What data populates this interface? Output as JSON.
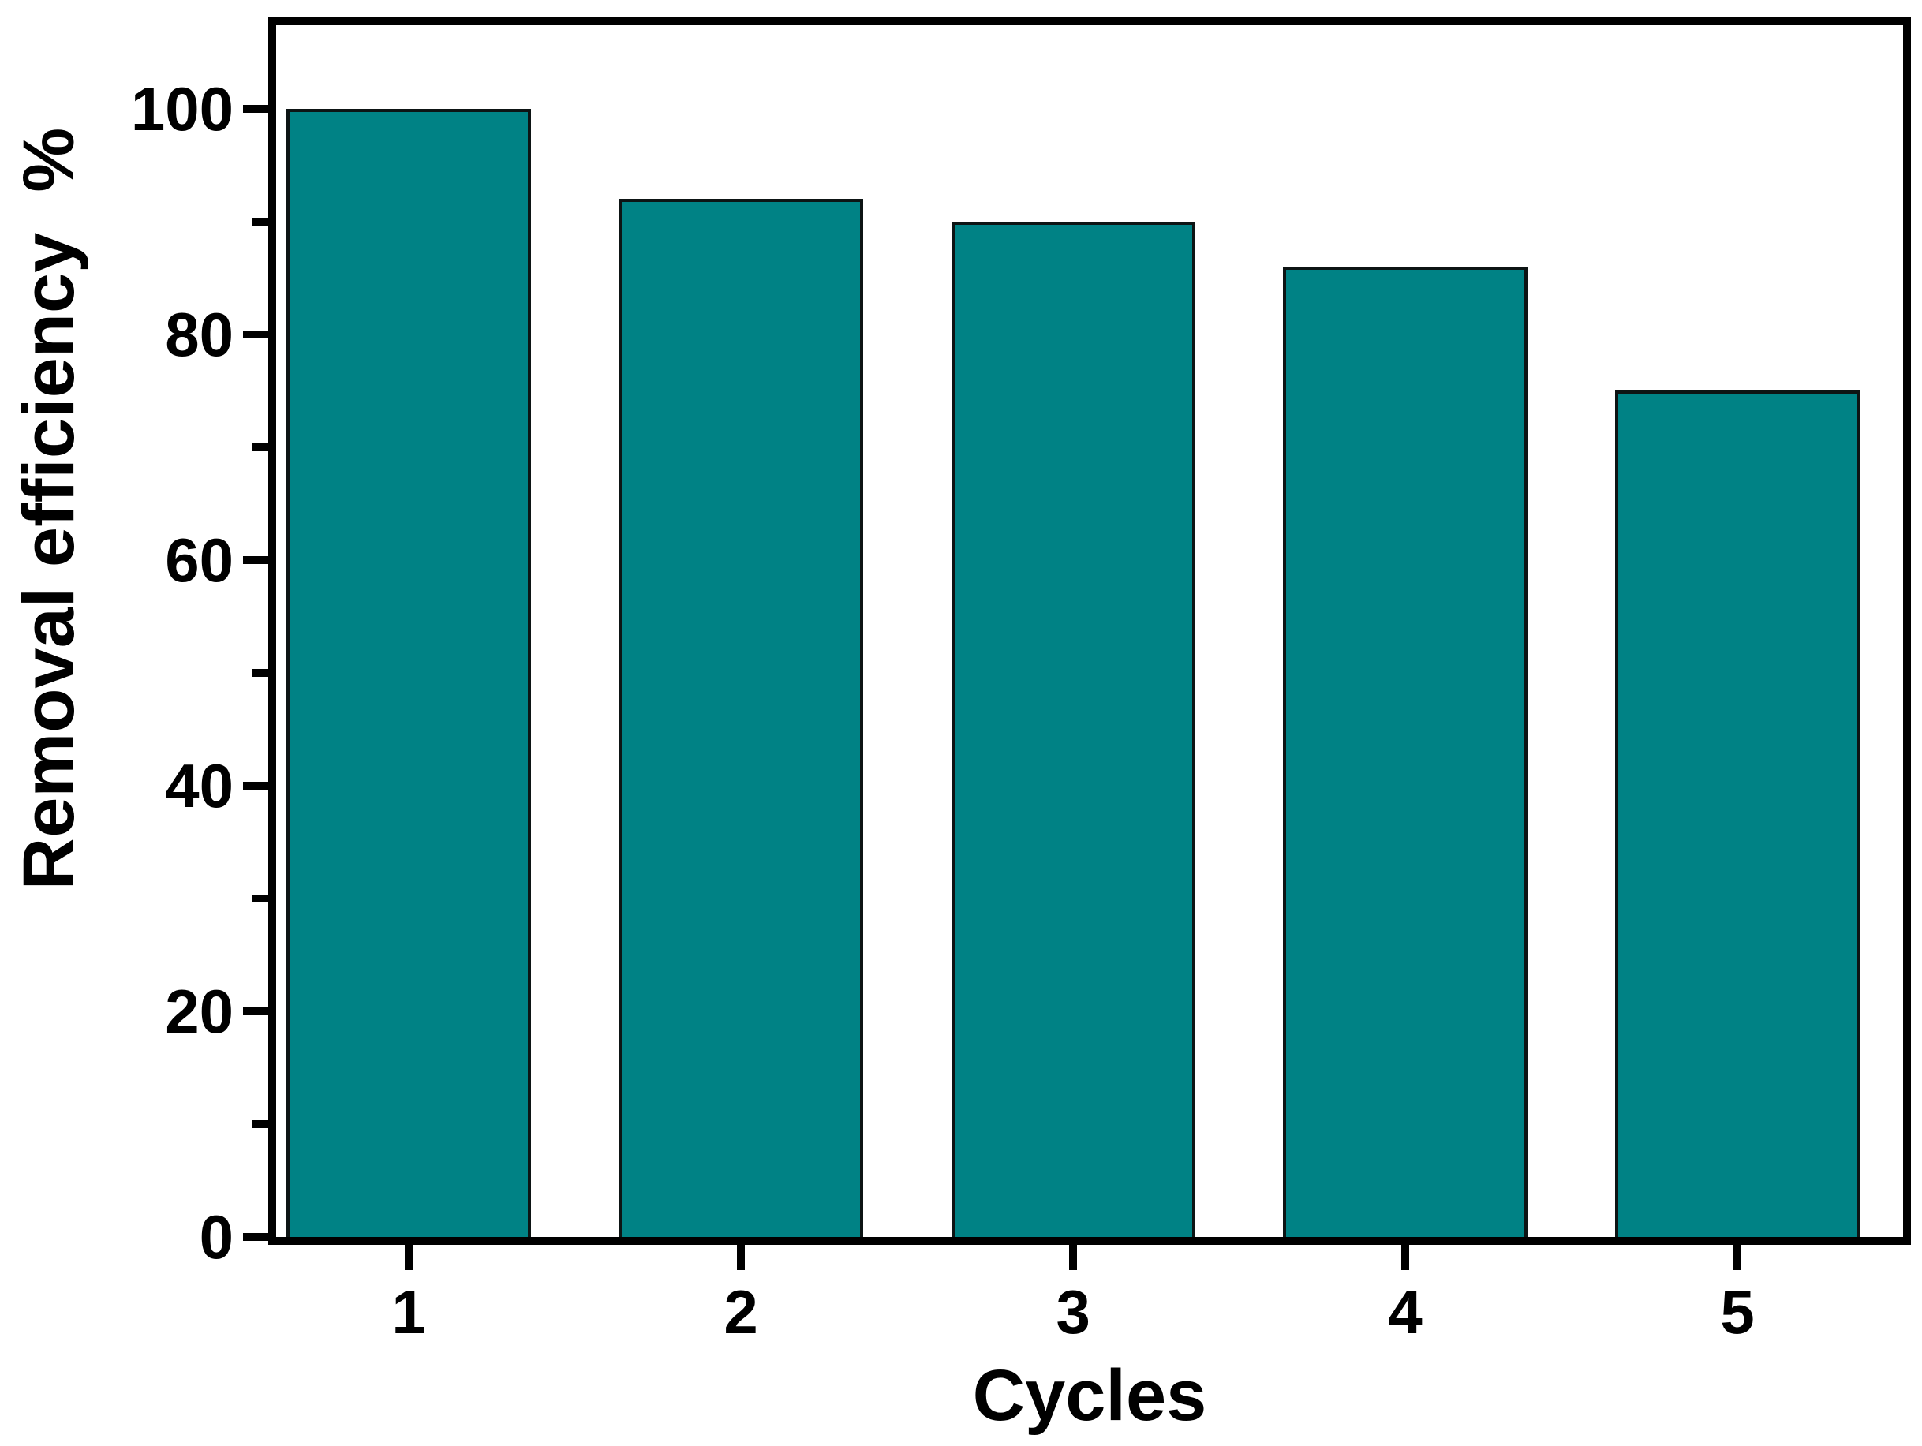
{
  "figure": {
    "background": "#ffffff",
    "axis_color": "#000000",
    "text_color": "#000000"
  },
  "chart_data": {
    "type": "bar",
    "categories": [
      "1",
      "2",
      "3",
      "4",
      "5"
    ],
    "values": [
      100,
      92,
      90,
      86,
      75
    ],
    "title": "",
    "xlabel": "Cycles",
    "ylabel": "Removal efficiency  %",
    "ylim": [
      0,
      107.4
    ],
    "yticks_major": [
      0,
      20,
      40,
      60,
      80,
      100
    ],
    "yticks_minor": [
      10,
      30,
      50,
      70,
      90
    ],
    "ytick_labels": [
      "0",
      "20",
      "40",
      "60",
      "80",
      "100"
    ],
    "xtick_labels": [
      "1",
      "2",
      "3",
      "4",
      "5"
    ],
    "grid": false,
    "legend_position": "none",
    "bar_fill_color": "#008285",
    "bar_border_color": "#0d1414",
    "frame_color": "#000000"
  }
}
